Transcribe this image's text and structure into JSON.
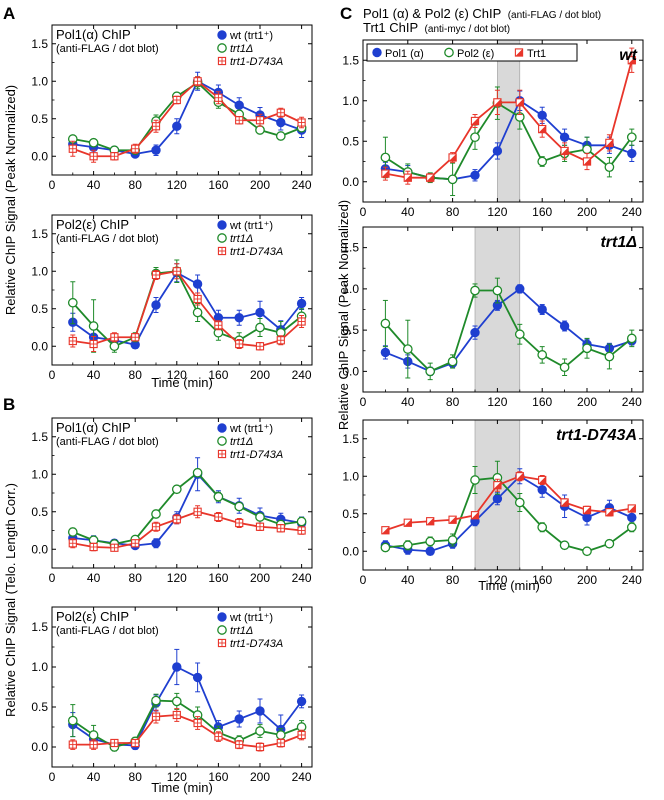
{
  "figure": {
    "panel_letters": [
      "A",
      "B",
      "C"
    ],
    "A": {
      "ylabel": "Relative ChIP Signal (Peak Normalized)",
      "xlabel": "Time (min)"
    },
    "B": {
      "ylabel": "Relative ChIP Signal (Telo. Length Corr.)",
      "xlabel": "Time (min)"
    },
    "C": {
      "title_line1_main": "Pol1 (α) & Pol2 (ε) ChIP",
      "title_line1_sub": "(anti-FLAG / dot blot)",
      "title_line2_main": "Trt1 ChIP",
      "title_line2_sub": "(anti-myc / dot blot)",
      "ylabel": "Relative ChIP Signal (Peak Normalized)",
      "xlabel": "Time (min)"
    }
  },
  "colors": {
    "wt": "#1f3fd0",
    "trt1delta": "#1f8a2a",
    "d743a": "#e8352a",
    "shade": "#d9d9d9"
  },
  "chart_data": [
    {
      "id": "A1",
      "type": "line",
      "title": "Pol1(α) ChIP",
      "subtitle": "(anti-FLAG / dot blot)",
      "xlim": [
        0,
        250
      ],
      "ylim": [
        -0.25,
        1.75
      ],
      "xticks": [
        0,
        40,
        80,
        120,
        160,
        200,
        240
      ],
      "yticks": [
        0.0,
        0.5,
        1.0,
        1.5
      ],
      "x": [
        20,
        40,
        60,
        80,
        100,
        120,
        140,
        160,
        180,
        200,
        220,
        240
      ],
      "legend": [
        "wt (trt1⁺)",
        "trt1Δ",
        "trt1-D743A"
      ],
      "series": [
        {
          "name": "wt (trt1⁺)",
          "style": "wt",
          "y": [
            0.16,
            0.12,
            0.08,
            0.03,
            0.08,
            0.4,
            1.0,
            0.85,
            0.68,
            0.55,
            0.45,
            0.35
          ],
          "err": [
            0.08,
            0.08,
            0.05,
            0.04,
            0.07,
            0.1,
            0.12,
            0.1,
            0.1,
            0.1,
            0.1,
            0.1
          ]
        },
        {
          "name": "trt1Δ",
          "style": "trt1delta",
          "y": [
            0.23,
            0.18,
            0.08,
            0.08,
            0.47,
            0.8,
            0.98,
            0.72,
            0.56,
            0.35,
            0.27,
            0.38
          ],
          "err": [
            0.03,
            0.04,
            0.04,
            0.05,
            0.08,
            0.05,
            0.08,
            0.08,
            0.05,
            0.05,
            0.05,
            0.05
          ]
        },
        {
          "name": "trt1-D743A",
          "style": "d743a",
          "y": [
            0.1,
            0.0,
            0.0,
            0.1,
            0.4,
            0.75,
            1.0,
            0.78,
            0.48,
            0.48,
            0.58,
            0.45
          ],
          "err": [
            0.1,
            0.08,
            0.05,
            0.06,
            0.08,
            0.05,
            0.06,
            0.08,
            0.05,
            0.08,
            0.06,
            0.07
          ]
        }
      ]
    },
    {
      "id": "A2",
      "type": "line",
      "title": "Pol2(ε) ChIP",
      "subtitle": "(anti-FLAG / dot blot)",
      "xlim": [
        0,
        250
      ],
      "ylim": [
        -0.25,
        1.75
      ],
      "xticks": [
        0,
        40,
        80,
        120,
        160,
        200,
        240
      ],
      "yticks": [
        0.0,
        0.5,
        1.0,
        1.5
      ],
      "x": [
        20,
        40,
        60,
        80,
        100,
        120,
        140,
        160,
        180,
        200,
        220,
        240
      ],
      "legend": [
        "wt (trt1⁺)",
        "trt1Δ",
        "trt1-D743A"
      ],
      "series": [
        {
          "name": "wt (trt1⁺)",
          "style": "wt",
          "y": [
            0.32,
            0.12,
            0.08,
            0.02,
            0.55,
            0.98,
            0.83,
            0.38,
            0.38,
            0.45,
            0.22,
            0.57
          ],
          "err": [
            0.12,
            0.1,
            0.06,
            0.05,
            0.1,
            0.12,
            0.12,
            0.1,
            0.1,
            0.15,
            0.12,
            0.08
          ]
        },
        {
          "name": "trt1Δ",
          "style": "trt1delta",
          "y": [
            0.58,
            0.27,
            0.0,
            0.12,
            0.97,
            1.0,
            0.45,
            0.18,
            0.08,
            0.25,
            0.18,
            0.4
          ],
          "err": [
            0.28,
            0.35,
            0.08,
            0.06,
            0.08,
            0.15,
            0.12,
            0.1,
            0.1,
            0.12,
            0.15,
            0.1
          ]
        },
        {
          "name": "trt1-D743A",
          "style": "d743a",
          "y": [
            0.07,
            0.03,
            0.12,
            0.12,
            0.95,
            1.0,
            0.63,
            0.28,
            0.03,
            0.0,
            0.08,
            0.33
          ],
          "err": [
            0.08,
            0.1,
            0.06,
            0.05,
            0.06,
            0.1,
            0.08,
            0.06,
            0.06,
            0.05,
            0.06,
            0.08
          ]
        }
      ]
    },
    {
      "id": "B1",
      "type": "line",
      "title": "Pol1(α) ChIP",
      "subtitle": "(anti-FLAG / dot blot)",
      "xlim": [
        0,
        250
      ],
      "ylim": [
        -0.25,
        1.75
      ],
      "xticks": [
        0,
        40,
        80,
        120,
        160,
        200,
        240
      ],
      "yticks": [
        0.0,
        0.5,
        1.0,
        1.5
      ],
      "x": [
        20,
        40,
        60,
        80,
        100,
        120,
        140,
        160,
        180,
        200,
        220,
        240
      ],
      "legend": [
        "wt (trt1⁺)",
        "trt1Δ",
        "trt1-D743A"
      ],
      "series": [
        {
          "name": "wt (trt1⁺)",
          "style": "wt",
          "y": [
            0.15,
            0.12,
            0.08,
            0.05,
            0.08,
            0.42,
            1.0,
            0.7,
            0.58,
            0.45,
            0.4,
            0.35
          ],
          "err": [
            0.08,
            0.06,
            0.05,
            0.04,
            0.06,
            0.08,
            0.22,
            0.08,
            0.1,
            0.1,
            0.08,
            0.08
          ]
        },
        {
          "name": "trt1Δ",
          "style": "trt1delta",
          "y": [
            0.23,
            0.12,
            0.07,
            0.13,
            0.47,
            0.8,
            1.02,
            0.7,
            0.57,
            0.43,
            0.33,
            0.37
          ],
          "err": [
            0.05,
            0.05,
            0.04,
            0.04,
            0.05,
            0.05,
            0.05,
            0.06,
            0.05,
            0.05,
            0.05,
            0.05
          ]
        },
        {
          "name": "trt1-D743A",
          "style": "d743a",
          "y": [
            0.08,
            0.03,
            0.02,
            0.08,
            0.3,
            0.4,
            0.5,
            0.43,
            0.35,
            0.3,
            0.28,
            0.25
          ],
          "err": [
            0.06,
            0.05,
            0.04,
            0.04,
            0.06,
            0.06,
            0.08,
            0.06,
            0.06,
            0.05,
            0.05,
            0.05
          ]
        }
      ]
    },
    {
      "id": "B2",
      "type": "line",
      "title": "Pol2(ε) ChIP",
      "subtitle": "(anti-FLAG / dot blot)",
      "xlim": [
        0,
        250
      ],
      "ylim": [
        -0.25,
        1.75
      ],
      "xticks": [
        0,
        40,
        80,
        120,
        160,
        200,
        240
      ],
      "yticks": [
        0.0,
        0.5,
        1.0,
        1.5
      ],
      "x": [
        20,
        40,
        60,
        80,
        100,
        120,
        140,
        160,
        180,
        200,
        220,
        240
      ],
      "legend": [
        "wt (trt1⁺)",
        "trt1Δ",
        "trt1-D743A"
      ],
      "series": [
        {
          "name": "wt (trt1⁺)",
          "style": "wt",
          "y": [
            0.28,
            0.1,
            0.03,
            0.02,
            0.55,
            1.0,
            0.87,
            0.25,
            0.35,
            0.45,
            0.22,
            0.57
          ],
          "err": [
            0.15,
            0.08,
            0.05,
            0.05,
            0.1,
            0.22,
            0.18,
            0.08,
            0.1,
            0.15,
            0.18,
            0.08
          ]
        },
        {
          "name": "trt1Δ",
          "style": "trt1delta",
          "y": [
            0.33,
            0.15,
            0.0,
            0.07,
            0.58,
            0.57,
            0.4,
            0.18,
            0.08,
            0.2,
            0.15,
            0.25
          ],
          "err": [
            0.2,
            0.12,
            0.05,
            0.05,
            0.08,
            0.1,
            0.1,
            0.08,
            0.06,
            0.08,
            0.08,
            0.08
          ]
        },
        {
          "name": "trt1-D743A",
          "style": "d743a",
          "y": [
            0.03,
            0.03,
            0.05,
            0.05,
            0.38,
            0.4,
            0.3,
            0.13,
            0.03,
            0.0,
            0.05,
            0.15
          ],
          "err": [
            0.06,
            0.06,
            0.04,
            0.04,
            0.08,
            0.08,
            0.08,
            0.06,
            0.05,
            0.05,
            0.05,
            0.06
          ]
        }
      ]
    },
    {
      "id": "C1",
      "type": "line",
      "corner_label": "wt",
      "xlim": [
        0,
        250
      ],
      "ylim": [
        -0.25,
        1.75
      ],
      "xticks": [
        0,
        40,
        80,
        120,
        160,
        200,
        240
      ],
      "yticks": [
        0.0,
        0.5,
        1.0,
        1.5
      ],
      "shade": [
        120,
        140
      ],
      "x": [
        20,
        40,
        60,
        80,
        100,
        120,
        140,
        160,
        180,
        200,
        220,
        240
      ],
      "legend": [
        "Pol1 (α)",
        "Pol2 (ε)",
        "Trt1"
      ],
      "series": [
        {
          "name": "Pol1 (α)",
          "style": "wt",
          "y": [
            0.16,
            0.12,
            0.05,
            0.03,
            0.08,
            0.38,
            1.0,
            0.82,
            0.55,
            0.45,
            0.45,
            0.35
          ],
          "err": [
            0.08,
            0.08,
            0.05,
            0.04,
            0.07,
            0.1,
            0.12,
            0.1,
            0.1,
            0.1,
            0.1,
            0.1
          ]
        },
        {
          "name": "Pol2 (ε)",
          "style": "trt1delta",
          "y": [
            0.3,
            0.12,
            0.05,
            0.03,
            0.55,
            0.97,
            0.8,
            0.25,
            0.35,
            0.4,
            0.18,
            0.55
          ],
          "err": [
            0.25,
            0.1,
            0.06,
            0.2,
            0.15,
            0.2,
            0.15,
            0.06,
            0.1,
            0.15,
            0.12,
            0.1
          ]
        },
        {
          "name": "Trt1",
          "style": "d743a",
          "y": [
            0.1,
            0.05,
            0.05,
            0.3,
            0.75,
            0.98,
            0.98,
            0.65,
            0.38,
            0.25,
            0.48,
            1.5
          ],
          "err": [
            0.08,
            0.08,
            0.05,
            0.06,
            0.08,
            0.15,
            0.15,
            0.1,
            0.1,
            0.1,
            0.1,
            0.15
          ]
        }
      ]
    },
    {
      "id": "C2",
      "type": "line",
      "corner_label": "trt1Δ",
      "xlim": [
        0,
        250
      ],
      "ylim": [
        -0.25,
        1.75
      ],
      "xticks": [
        0,
        40,
        80,
        120,
        160,
        200,
        240
      ],
      "yticks": [
        0.0,
        0.5,
        1.0,
        1.5
      ],
      "shade": [
        100,
        140
      ],
      "x": [
        20,
        40,
        60,
        80,
        100,
        120,
        140,
        160,
        180,
        200,
        220,
        240
      ],
      "legend": [],
      "series": [
        {
          "name": "Pol1 (α)",
          "style": "wt",
          "y": [
            0.23,
            0.12,
            0.0,
            0.1,
            0.47,
            0.8,
            1.0,
            0.75,
            0.55,
            0.33,
            0.28,
            0.37
          ],
          "err": [
            0.08,
            0.08,
            0.05,
            0.05,
            0.08,
            0.06,
            0.05,
            0.06,
            0.06,
            0.06,
            0.06,
            0.05
          ]
        },
        {
          "name": "Pol2 (ε)",
          "style": "trt1delta",
          "y": [
            0.58,
            0.27,
            0.0,
            0.12,
            0.98,
            0.98,
            0.45,
            0.2,
            0.05,
            0.28,
            0.18,
            0.4
          ],
          "err": [
            0.28,
            0.35,
            0.1,
            0.08,
            0.08,
            0.15,
            0.12,
            0.1,
            0.1,
            0.12,
            0.15,
            0.1
          ]
        }
      ]
    },
    {
      "id": "C3",
      "type": "line",
      "corner_label": "trt1-D743A",
      "xlim": [
        0,
        250
      ],
      "ylim": [
        -0.25,
        1.75
      ],
      "xticks": [
        0,
        40,
        80,
        120,
        160,
        200,
        240
      ],
      "yticks": [
        0.0,
        0.5,
        1.0,
        1.5
      ],
      "shade": [
        100,
        140
      ],
      "x": [
        20,
        40,
        60,
        80,
        100,
        120,
        140,
        160,
        180,
        200,
        220,
        240
      ],
      "legend": [],
      "series": [
        {
          "name": "Pol1 (α)",
          "style": "wt",
          "y": [
            0.08,
            0.02,
            0.0,
            0.1,
            0.4,
            0.7,
            1.0,
            0.82,
            0.6,
            0.45,
            0.58,
            0.45
          ],
          "err": [
            0.06,
            0.06,
            0.05,
            0.06,
            0.06,
            0.08,
            0.1,
            0.1,
            0.15,
            0.1,
            0.1,
            0.08
          ]
        },
        {
          "name": "Pol2 (ε)",
          "style": "trt1delta",
          "y": [
            0.05,
            0.08,
            0.13,
            0.15,
            0.95,
            0.98,
            0.65,
            0.32,
            0.08,
            0.0,
            0.1,
            0.32
          ],
          "err": [
            0.05,
            0.06,
            0.06,
            0.08,
            0.18,
            0.22,
            0.12,
            0.06,
            0.05,
            0.05,
            0.05,
            0.06
          ]
        },
        {
          "name": "Trt1",
          "style": "d743a",
          "y": [
            0.28,
            0.38,
            0.4,
            0.42,
            0.48,
            0.88,
            1.0,
            0.95,
            0.65,
            0.55,
            0.52,
            0.57
          ],
          "err": [
            0.04,
            0.04,
            0.04,
            0.04,
            0.04,
            0.08,
            0.06,
            0.06,
            0.05,
            0.05,
            0.05,
            0.04
          ]
        }
      ]
    }
  ]
}
